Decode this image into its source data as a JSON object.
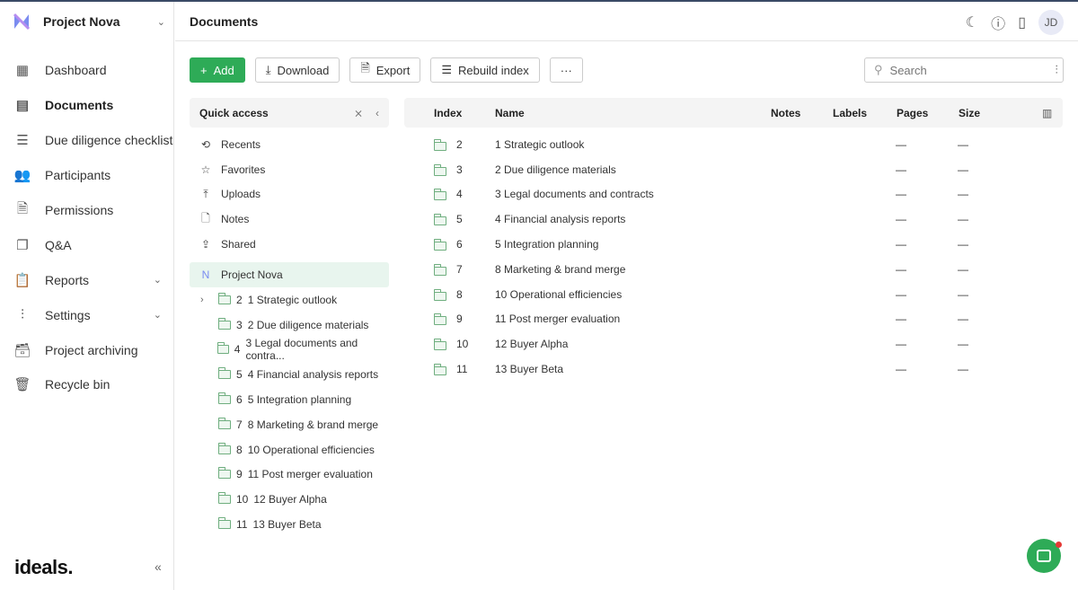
{
  "project": {
    "name": "Project Nova"
  },
  "header": {
    "title": "Documents",
    "avatar": "JD"
  },
  "sidebar": {
    "items": [
      {
        "label": "Dashboard",
        "icon": "dashboard-icon",
        "glyph": "▦"
      },
      {
        "label": "Documents",
        "icon": "documents-icon",
        "glyph": "▤",
        "active": true
      },
      {
        "label": "Due diligence checklist",
        "icon": "checklist-icon",
        "glyph": "☰"
      },
      {
        "label": "Participants",
        "icon": "participants-icon",
        "glyph": "👥"
      },
      {
        "label": "Permissions",
        "icon": "permissions-icon",
        "glyph": "🗎"
      },
      {
        "label": "Q&A",
        "icon": "qa-icon",
        "glyph": "❐"
      },
      {
        "label": "Reports",
        "icon": "reports-icon",
        "glyph": "📋",
        "chevron": true
      },
      {
        "label": "Settings",
        "icon": "settings-icon",
        "glyph": "⫶",
        "chevron": true
      },
      {
        "label": "Project archiving",
        "icon": "archive-icon",
        "glyph": "🗃"
      },
      {
        "label": "Recycle bin",
        "icon": "trash-icon",
        "glyph": "🗑"
      }
    ],
    "logo": "ideals."
  },
  "toolbar": {
    "add": "Add",
    "download": "Download",
    "export": "Export",
    "rebuild": "Rebuild index",
    "more": "···",
    "search_placeholder": "Search"
  },
  "quick_access": {
    "title": "Quick access",
    "items": [
      {
        "label": "Recents",
        "glyph": "⟲"
      },
      {
        "label": "Favorites",
        "glyph": "☆"
      },
      {
        "label": "Uploads",
        "glyph": "⤒"
      },
      {
        "label": "Notes",
        "glyph": "🗋"
      },
      {
        "label": "Shared",
        "glyph": "⇪"
      }
    ],
    "root": "Project Nova",
    "tree": [
      {
        "index": "2",
        "name": "1 Strategic outlook",
        "expandable": true
      },
      {
        "index": "3",
        "name": "2 Due diligence materials"
      },
      {
        "index": "4",
        "name": "3 Legal documents and contra..."
      },
      {
        "index": "5",
        "name": "4 Financial analysis reports"
      },
      {
        "index": "6",
        "name": "5 Integration planning"
      },
      {
        "index": "7",
        "name": "8 Marketing & brand merge"
      },
      {
        "index": "8",
        "name": "10 Operational efficiencies"
      },
      {
        "index": "9",
        "name": "11 Post merger evaluation"
      },
      {
        "index": "10",
        "name": "12 Buyer Alpha"
      },
      {
        "index": "11",
        "name": "13 Buyer Beta"
      }
    ]
  },
  "table": {
    "columns": [
      "Index",
      "Name",
      "Notes",
      "Labels",
      "Pages",
      "Size"
    ],
    "rows": [
      {
        "index": "2",
        "name": "1 Strategic outlook",
        "pages": "—",
        "size": "—"
      },
      {
        "index": "3",
        "name": "2 Due diligence materials",
        "pages": "—",
        "size": "—"
      },
      {
        "index": "4",
        "name": "3 Legal documents and contracts",
        "pages": "—",
        "size": "—"
      },
      {
        "index": "5",
        "name": "4 Financial analysis reports",
        "pages": "—",
        "size": "—"
      },
      {
        "index": "6",
        "name": "5 Integration planning",
        "pages": "—",
        "size": "—"
      },
      {
        "index": "7",
        "name": "8 Marketing & brand merge",
        "pages": "—",
        "size": "—"
      },
      {
        "index": "8",
        "name": "10 Operational efficiencies",
        "pages": "—",
        "size": "—"
      },
      {
        "index": "9",
        "name": "11 Post merger evaluation",
        "pages": "—",
        "size": "—"
      },
      {
        "index": "10",
        "name": "12 Buyer Alpha",
        "pages": "—",
        "size": "—"
      },
      {
        "index": "11",
        "name": "13 Buyer Beta",
        "pages": "—",
        "size": "—"
      }
    ]
  },
  "colors": {
    "accent": "#2eab57",
    "selected": "#e8f5ee"
  }
}
